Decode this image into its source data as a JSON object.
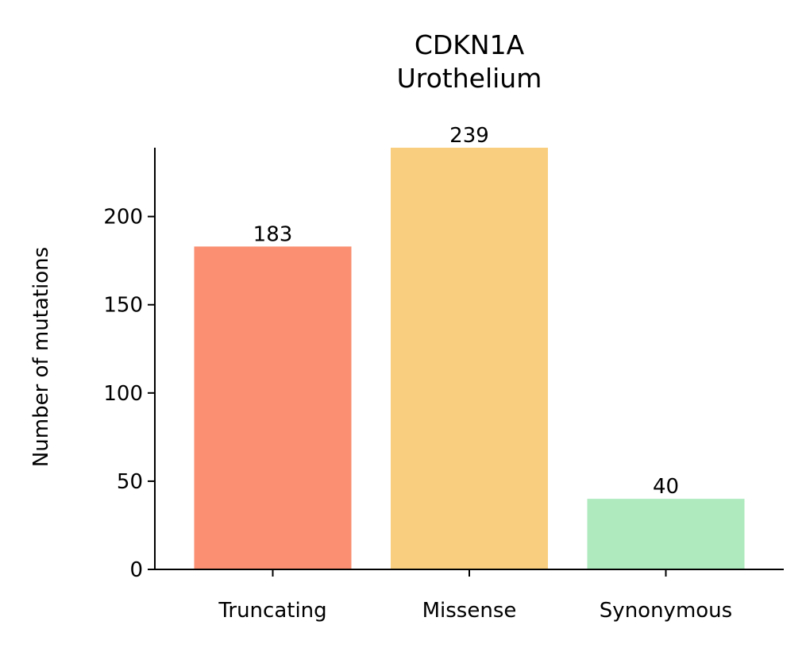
{
  "chart_data": {
    "type": "bar",
    "title_lines": [
      "CDKN1A",
      "Urothelium"
    ],
    "xlabel": "",
    "ylabel": "Number of mutations",
    "categories": [
      "Truncating",
      "Missense",
      "Synonymous"
    ],
    "values": [
      183,
      239,
      40
    ],
    "colors": [
      "#fa8f71",
      "#f9cf7f",
      "#aeeabd"
    ],
    "ylim": [
      0,
      239
    ],
    "yticks": [
      0,
      50,
      100,
      150,
      200
    ],
    "grid": false,
    "legend": "none",
    "spines": [
      "left",
      "bottom"
    ]
  }
}
